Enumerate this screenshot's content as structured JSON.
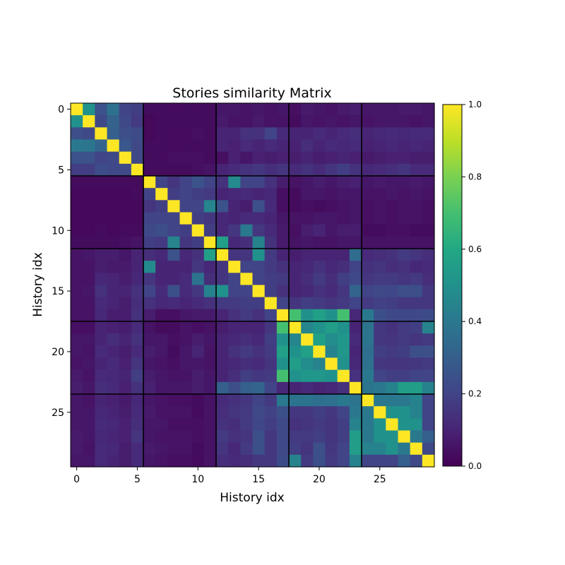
{
  "chart_data": {
    "type": "heatmap",
    "title": "Stories similarity Matrix",
    "xlabel": "History idx",
    "ylabel": "History idx",
    "x_ticks": [
      0,
      5,
      10,
      15,
      20,
      25
    ],
    "y_ticks": [
      0,
      5,
      10,
      15,
      20,
      25
    ],
    "colorbar_ticks": [
      "0.0",
      "0.2",
      "0.4",
      "0.6",
      "0.8",
      "1.0"
    ],
    "colormap": "viridis",
    "vmin": 0.0,
    "vmax": 1.0,
    "group_boundaries": [
      5.5,
      11.5,
      17.5,
      23.5
    ],
    "boundary_color": "#000000",
    "matrix": [
      [
        1.0,
        0.5,
        0.25,
        0.37,
        0.2,
        0.18,
        0.03,
        0.03,
        0.03,
        0.03,
        0.03,
        0.03,
        0.06,
        0.06,
        0.05,
        0.06,
        0.05,
        0.06,
        0.04,
        0.07,
        0.06,
        0.05,
        0.07,
        0.08,
        0.06,
        0.06,
        0.06,
        0.07,
        0.07,
        0.06
      ],
      [
        0.5,
        1.0,
        0.22,
        0.31,
        0.22,
        0.17,
        0.02,
        0.03,
        0.03,
        0.03,
        0.03,
        0.03,
        0.07,
        0.05,
        0.05,
        0.07,
        0.05,
        0.05,
        0.03,
        0.06,
        0.05,
        0.06,
        0.05,
        0.06,
        0.05,
        0.06,
        0.06,
        0.06,
        0.05,
        0.06
      ],
      [
        0.24,
        0.22,
        1.0,
        0.3,
        0.24,
        0.23,
        0.02,
        0.03,
        0.03,
        0.03,
        0.04,
        0.03,
        0.1,
        0.1,
        0.14,
        0.14,
        0.2,
        0.12,
        0.1,
        0.1,
        0.12,
        0.1,
        0.12,
        0.13,
        0.1,
        0.11,
        0.12,
        0.11,
        0.12,
        0.12
      ],
      [
        0.4,
        0.39,
        0.32,
        1.0,
        0.27,
        0.22,
        0.03,
        0.03,
        0.03,
        0.03,
        0.03,
        0.03,
        0.1,
        0.09,
        0.12,
        0.1,
        0.12,
        0.1,
        0.09,
        0.13,
        0.1,
        0.12,
        0.11,
        0.12,
        0.09,
        0.1,
        0.11,
        0.1,
        0.11,
        0.1
      ],
      [
        0.25,
        0.25,
        0.2,
        0.22,
        1.0,
        0.22,
        0.03,
        0.03,
        0.04,
        0.04,
        0.04,
        0.03,
        0.04,
        0.09,
        0.06,
        0.09,
        0.08,
        0.09,
        0.08,
        0.1,
        0.08,
        0.09,
        0.1,
        0.09,
        0.07,
        0.08,
        0.09,
        0.09,
        0.08,
        0.08
      ],
      [
        0.18,
        0.18,
        0.23,
        0.22,
        0.22,
        1.0,
        0.03,
        0.03,
        0.03,
        0.03,
        0.04,
        0.05,
        0.1,
        0.12,
        0.14,
        0.16,
        0.13,
        0.15,
        0.12,
        0.14,
        0.12,
        0.15,
        0.18,
        0.14,
        0.11,
        0.12,
        0.13,
        0.15,
        0.12,
        0.12
      ],
      [
        0.03,
        0.03,
        0.03,
        0.03,
        0.03,
        0.03,
        1.0,
        0.2,
        0.15,
        0.2,
        0.25,
        0.2,
        0.14,
        0.47,
        0.2,
        0.2,
        0.14,
        0.08,
        0.05,
        0.06,
        0.08,
        0.06,
        0.08,
        0.09,
        0.06,
        0.07,
        0.06,
        0.06,
        0.07,
        0.06
      ],
      [
        0.02,
        0.02,
        0.02,
        0.02,
        0.02,
        0.03,
        0.2,
        1.0,
        0.18,
        0.2,
        0.18,
        0.17,
        0.1,
        0.11,
        0.12,
        0.1,
        0.11,
        0.04,
        0.03,
        0.06,
        0.06,
        0.05,
        0.06,
        0.06,
        0.05,
        0.05,
        0.06,
        0.05,
        0.06,
        0.05
      ],
      [
        0.02,
        0.02,
        0.02,
        0.02,
        0.02,
        0.02,
        0.15,
        0.18,
        1.0,
        0.2,
        0.2,
        0.45,
        0.25,
        0.1,
        0.08,
        0.24,
        0.12,
        0.04,
        0.03,
        0.04,
        0.03,
        0.04,
        0.05,
        0.06,
        0.04,
        0.05,
        0.04,
        0.05,
        0.05,
        0.04
      ],
      [
        0.02,
        0.02,
        0.02,
        0.02,
        0.02,
        0.02,
        0.2,
        0.2,
        0.2,
        1.0,
        0.18,
        0.16,
        0.11,
        0.1,
        0.12,
        0.12,
        0.1,
        0.06,
        0.05,
        0.05,
        0.06,
        0.06,
        0.05,
        0.06,
        0.04,
        0.05,
        0.04,
        0.05,
        0.05,
        0.04
      ],
      [
        0.02,
        0.02,
        0.03,
        0.02,
        0.03,
        0.03,
        0.22,
        0.24,
        0.2,
        0.18,
        1.0,
        0.18,
        0.11,
        0.16,
        0.4,
        0.16,
        0.12,
        0.07,
        0.04,
        0.08,
        0.1,
        0.06,
        0.08,
        0.08,
        0.03,
        0.03,
        0.04,
        0.04,
        0.03,
        0.03
      ],
      [
        0.03,
        0.03,
        0.03,
        0.03,
        0.04,
        0.05,
        0.18,
        0.17,
        0.45,
        0.16,
        0.18,
        1.0,
        0.56,
        0.11,
        0.13,
        0.44,
        0.14,
        0.07,
        0.05,
        0.06,
        0.05,
        0.05,
        0.06,
        0.06,
        0.05,
        0.05,
        0.05,
        0.05,
        0.05,
        0.05
      ],
      [
        0.05,
        0.06,
        0.08,
        0.08,
        0.06,
        0.1,
        0.13,
        0.11,
        0.25,
        0.11,
        0.14,
        0.56,
        1.0,
        0.15,
        0.15,
        0.5,
        0.17,
        0.1,
        0.08,
        0.1,
        0.1,
        0.1,
        0.1,
        0.35,
        0.12,
        0.13,
        0.14,
        0.17,
        0.15,
        0.13
      ],
      [
        0.05,
        0.05,
        0.08,
        0.07,
        0.07,
        0.1,
        0.47,
        0.1,
        0.1,
        0.1,
        0.16,
        0.11,
        0.15,
        1.0,
        0.2,
        0.2,
        0.17,
        0.14,
        0.1,
        0.11,
        0.14,
        0.11,
        0.13,
        0.2,
        0.14,
        0.15,
        0.13,
        0.14,
        0.11,
        0.12
      ],
      [
        0.05,
        0.05,
        0.11,
        0.1,
        0.08,
        0.11,
        0.15,
        0.1,
        0.1,
        0.12,
        0.38,
        0.13,
        0.15,
        0.2,
        1.0,
        0.2,
        0.18,
        0.17,
        0.1,
        0.13,
        0.17,
        0.13,
        0.18,
        0.22,
        0.16,
        0.17,
        0.17,
        0.15,
        0.17,
        0.13
      ],
      [
        0.05,
        0.06,
        0.14,
        0.1,
        0.1,
        0.14,
        0.2,
        0.12,
        0.24,
        0.12,
        0.16,
        0.44,
        0.5,
        0.2,
        0.2,
        1.0,
        0.18,
        0.14,
        0.1,
        0.11,
        0.14,
        0.12,
        0.16,
        0.32,
        0.2,
        0.22,
        0.21,
        0.24,
        0.24,
        0.16
      ],
      [
        0.05,
        0.05,
        0.12,
        0.1,
        0.08,
        0.13,
        0.14,
        0.11,
        0.12,
        0.1,
        0.12,
        0.14,
        0.17,
        0.17,
        0.18,
        0.18,
        1.0,
        0.2,
        0.15,
        0.18,
        0.17,
        0.15,
        0.17,
        0.2,
        0.17,
        0.19,
        0.18,
        0.16,
        0.16,
        0.16
      ],
      [
        0.05,
        0.05,
        0.11,
        0.08,
        0.08,
        0.14,
        0.08,
        0.04,
        0.04,
        0.06,
        0.07,
        0.07,
        0.1,
        0.14,
        0.17,
        0.14,
        0.2,
        1.0,
        0.7,
        0.5,
        0.56,
        0.5,
        0.7,
        0.11,
        0.4,
        0.24,
        0.22,
        0.22,
        0.22,
        0.23
      ],
      [
        0.04,
        0.04,
        0.1,
        0.09,
        0.08,
        0.12,
        0.05,
        0.03,
        0.03,
        0.05,
        0.04,
        0.05,
        0.08,
        0.1,
        0.1,
        0.1,
        0.15,
        0.7,
        1.0,
        0.45,
        0.5,
        0.55,
        0.5,
        0.1,
        0.38,
        0.16,
        0.14,
        0.17,
        0.18,
        0.44
      ],
      [
        0.06,
        0.06,
        0.1,
        0.13,
        0.1,
        0.14,
        0.06,
        0.06,
        0.04,
        0.05,
        0.08,
        0.06,
        0.1,
        0.11,
        0.13,
        0.11,
        0.18,
        0.5,
        0.45,
        1.0,
        0.56,
        0.48,
        0.52,
        0.12,
        0.38,
        0.16,
        0.15,
        0.17,
        0.15,
        0.17
      ],
      [
        0.06,
        0.05,
        0.12,
        0.1,
        0.08,
        0.12,
        0.08,
        0.06,
        0.03,
        0.06,
        0.1,
        0.05,
        0.1,
        0.14,
        0.17,
        0.14,
        0.17,
        0.56,
        0.5,
        0.56,
        1.0,
        0.44,
        0.52,
        0.1,
        0.36,
        0.18,
        0.17,
        0.18,
        0.24,
        0.24
      ],
      [
        0.05,
        0.06,
        0.1,
        0.12,
        0.09,
        0.15,
        0.06,
        0.05,
        0.04,
        0.06,
        0.06,
        0.05,
        0.1,
        0.11,
        0.13,
        0.12,
        0.15,
        0.5,
        0.55,
        0.48,
        0.44,
        1.0,
        0.5,
        0.11,
        0.37,
        0.16,
        0.15,
        0.15,
        0.16,
        0.17
      ],
      [
        0.07,
        0.05,
        0.12,
        0.11,
        0.1,
        0.18,
        0.08,
        0.06,
        0.05,
        0.05,
        0.08,
        0.06,
        0.1,
        0.13,
        0.18,
        0.16,
        0.17,
        0.7,
        0.5,
        0.52,
        0.52,
        0.5,
        1.0,
        0.14,
        0.4,
        0.2,
        0.18,
        0.18,
        0.2,
        0.2
      ],
      [
        0.08,
        0.06,
        0.13,
        0.12,
        0.09,
        0.14,
        0.09,
        0.06,
        0.06,
        0.06,
        0.08,
        0.06,
        0.3,
        0.24,
        0.3,
        0.32,
        0.2,
        0.11,
        0.1,
        0.12,
        0.1,
        0.11,
        0.14,
        1.0,
        0.38,
        0.4,
        0.44,
        0.55,
        0.55,
        0.44
      ],
      [
        0.06,
        0.05,
        0.1,
        0.09,
        0.07,
        0.11,
        0.06,
        0.05,
        0.04,
        0.04,
        0.03,
        0.05,
        0.12,
        0.14,
        0.16,
        0.2,
        0.17,
        0.4,
        0.38,
        0.38,
        0.36,
        0.37,
        0.4,
        0.38,
        1.0,
        0.4,
        0.4,
        0.4,
        0.44,
        0.2
      ],
      [
        0.06,
        0.06,
        0.11,
        0.1,
        0.08,
        0.12,
        0.07,
        0.05,
        0.05,
        0.05,
        0.03,
        0.05,
        0.13,
        0.15,
        0.17,
        0.22,
        0.19,
        0.24,
        0.16,
        0.16,
        0.18,
        0.16,
        0.2,
        0.4,
        0.4,
        1.0,
        0.5,
        0.5,
        0.44,
        0.2
      ],
      [
        0.06,
        0.06,
        0.12,
        0.11,
        0.09,
        0.13,
        0.06,
        0.06,
        0.04,
        0.04,
        0.04,
        0.05,
        0.14,
        0.13,
        0.17,
        0.21,
        0.18,
        0.22,
        0.14,
        0.15,
        0.17,
        0.15,
        0.18,
        0.44,
        0.4,
        0.5,
        1.0,
        0.5,
        0.5,
        0.2
      ],
      [
        0.07,
        0.06,
        0.11,
        0.1,
        0.09,
        0.15,
        0.06,
        0.05,
        0.05,
        0.05,
        0.04,
        0.05,
        0.17,
        0.14,
        0.15,
        0.24,
        0.16,
        0.22,
        0.17,
        0.17,
        0.18,
        0.15,
        0.18,
        0.55,
        0.4,
        0.5,
        0.5,
        1.0,
        0.4,
        0.3
      ],
      [
        0.07,
        0.05,
        0.12,
        0.11,
        0.08,
        0.12,
        0.07,
        0.06,
        0.05,
        0.05,
        0.03,
        0.05,
        0.15,
        0.11,
        0.17,
        0.24,
        0.16,
        0.22,
        0.18,
        0.15,
        0.24,
        0.16,
        0.2,
        0.55,
        0.44,
        0.44,
        0.5,
        0.4,
        1.0,
        0.22
      ],
      [
        0.06,
        0.06,
        0.12,
        0.1,
        0.08,
        0.12,
        0.06,
        0.05,
        0.04,
        0.04,
        0.03,
        0.05,
        0.13,
        0.12,
        0.13,
        0.16,
        0.16,
        0.23,
        0.44,
        0.17,
        0.24,
        0.17,
        0.2,
        0.44,
        0.2,
        0.2,
        0.2,
        0.3,
        0.22,
        1.0
      ]
    ]
  }
}
